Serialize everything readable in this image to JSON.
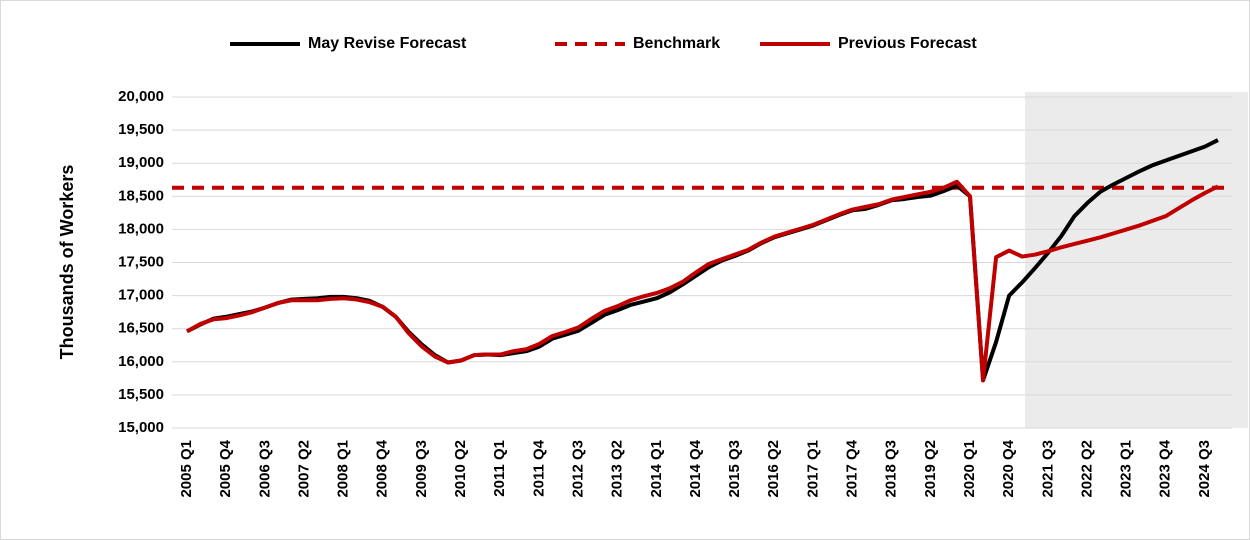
{
  "chart_data": {
    "type": "line",
    "y_label": "Thousands of Workers",
    "categories": [
      "2005 Q1",
      null,
      null,
      "2005 Q4",
      null,
      null,
      "2006 Q3",
      null,
      null,
      "2007 Q2",
      null,
      null,
      "2008 Q1",
      null,
      null,
      "2008 Q4",
      null,
      null,
      "2009 Q3",
      null,
      null,
      "2010 Q2",
      null,
      null,
      "2011 Q1",
      null,
      null,
      "2011 Q4",
      null,
      null,
      "2012 Q3",
      null,
      null,
      "2013 Q2",
      null,
      null,
      "2014 Q1",
      null,
      null,
      "2014 Q4",
      null,
      null,
      "2015 Q3",
      null,
      null,
      "2016 Q2",
      null,
      null,
      "2017 Q1",
      null,
      null,
      "2017 Q4",
      null,
      null,
      "2018 Q3",
      null,
      null,
      "2019 Q2",
      null,
      null,
      "2020 Q1",
      null,
      null,
      "2020 Q4",
      null,
      null,
      "2021 Q3",
      null,
      null,
      "2022 Q2",
      null,
      null,
      "2023 Q1",
      null,
      null,
      "2023 Q4",
      null,
      null,
      "2024 Q3",
      null
    ],
    "series": [
      {
        "name": "May Revise Forecast",
        "color": "#000000",
        "values": [
          16460,
          16560,
          16650,
          16680,
          16720,
          16760,
          16820,
          16890,
          16940,
          16950,
          16960,
          16980,
          16980,
          16960,
          16920,
          16830,
          16680,
          16450,
          16260,
          16100,
          15990,
          16020,
          16100,
          16110,
          16100,
          16130,
          16160,
          16230,
          16350,
          16410,
          16470,
          16590,
          16710,
          16780,
          16860,
          16910,
          16960,
          17050,
          17170,
          17300,
          17430,
          17530,
          17600,
          17680,
          17790,
          17880,
          17940,
          18000,
          18060,
          18140,
          18220,
          18290,
          18310,
          18370,
          18440,
          18460,
          18490,
          18510,
          18580,
          18660,
          18500,
          15720,
          16300,
          17000,
          17200,
          17420,
          17650,
          17900,
          18200,
          18400,
          18570,
          18680,
          18780,
          18880,
          18970,
          19040,
          19110,
          19180,
          19250,
          19350
        ]
      },
      {
        "name": "Previous Forecast",
        "color": "#c00000",
        "values": [
          16460,
          16570,
          16640,
          16660,
          16700,
          16750,
          16820,
          16890,
          16930,
          16930,
          16930,
          16950,
          16960,
          16940,
          16900,
          16830,
          16680,
          16430,
          16230,
          16080,
          15990,
          16020,
          16100,
          16110,
          16110,
          16160,
          16190,
          16270,
          16390,
          16450,
          16520,
          16650,
          16770,
          16840,
          16930,
          16990,
          17040,
          17110,
          17210,
          17350,
          17480,
          17550,
          17620,
          17690,
          17800,
          17890,
          17950,
          18010,
          18070,
          18150,
          18230,
          18300,
          18340,
          18380,
          18450,
          18490,
          18530,
          18570,
          18630,
          18720,
          18500,
          15720,
          17580,
          17680,
          17590,
          17620,
          17670,
          17730,
          17780,
          17830,
          17880,
          17940,
          18000,
          18060,
          18130,
          18200,
          18320,
          18440,
          18550,
          18650
        ]
      }
    ],
    "benchmark": {
      "name": "Benchmark",
      "value": 18630,
      "color": "#c00000"
    },
    "ylim": [
      15000,
      20000
    ],
    "yticks": [
      {
        "value": 15000,
        "label": "15,000"
      },
      {
        "value": 15500,
        "label": "15,500"
      },
      {
        "value": 16000,
        "label": "16,000"
      },
      {
        "value": 16500,
        "label": "16,500"
      },
      {
        "value": 17000,
        "label": "17,000"
      },
      {
        "value": 17500,
        "label": "17,500"
      },
      {
        "value": 18000,
        "label": "18,000"
      },
      {
        "value": 18500,
        "label": "18,500"
      },
      {
        "value": 19000,
        "label": "19,000"
      },
      {
        "value": 19500,
        "label": "19,500"
      },
      {
        "value": 20000,
        "label": "20,000"
      }
    ],
    "grid": true
  }
}
